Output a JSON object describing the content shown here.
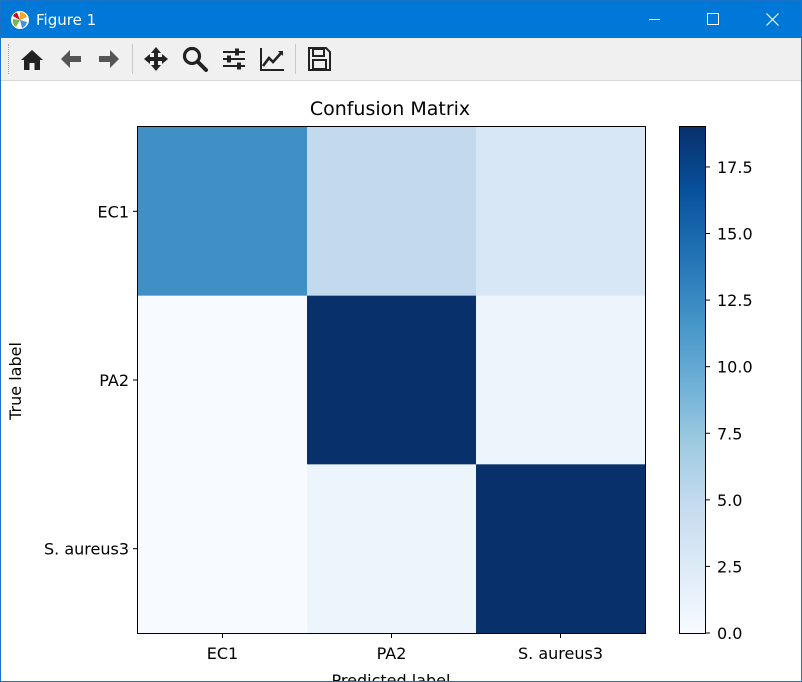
{
  "window": {
    "title": "Figure 1"
  },
  "toolbar": {
    "items": [
      {
        "icon": "home-icon"
      },
      {
        "icon": "back-arrow-icon"
      },
      {
        "icon": "forward-arrow-icon"
      },
      {
        "icon": "pan-move-icon"
      },
      {
        "icon": "zoom-magnifier-icon"
      },
      {
        "icon": "configure-subplots-icon"
      },
      {
        "icon": "edit-axis-icon"
      },
      {
        "icon": "save-floppy-icon"
      }
    ]
  },
  "colors": {
    "titlebar": "#0078d7",
    "cmap_low": "#f7fbff",
    "cmap_high": "#08306b"
  },
  "chart_data": {
    "type": "heatmap",
    "title": "Confusion Matrix",
    "xlabel": "Predicted label",
    "ylabel": "True label",
    "x_categories": [
      "EC1",
      "PA2",
      "S. aureus3"
    ],
    "y_categories": [
      "EC1",
      "PA2",
      "S. aureus3"
    ],
    "values": [
      [
        12,
        5,
        3
      ],
      [
        0,
        19,
        1
      ],
      [
        0,
        1,
        19
      ]
    ],
    "colormap": "Blues",
    "colorbar": {
      "min": 0,
      "max": 19,
      "ticks": [
        "0.0",
        "2.5",
        "5.0",
        "7.5",
        "10.0",
        "12.5",
        "15.0",
        "17.5"
      ]
    }
  }
}
